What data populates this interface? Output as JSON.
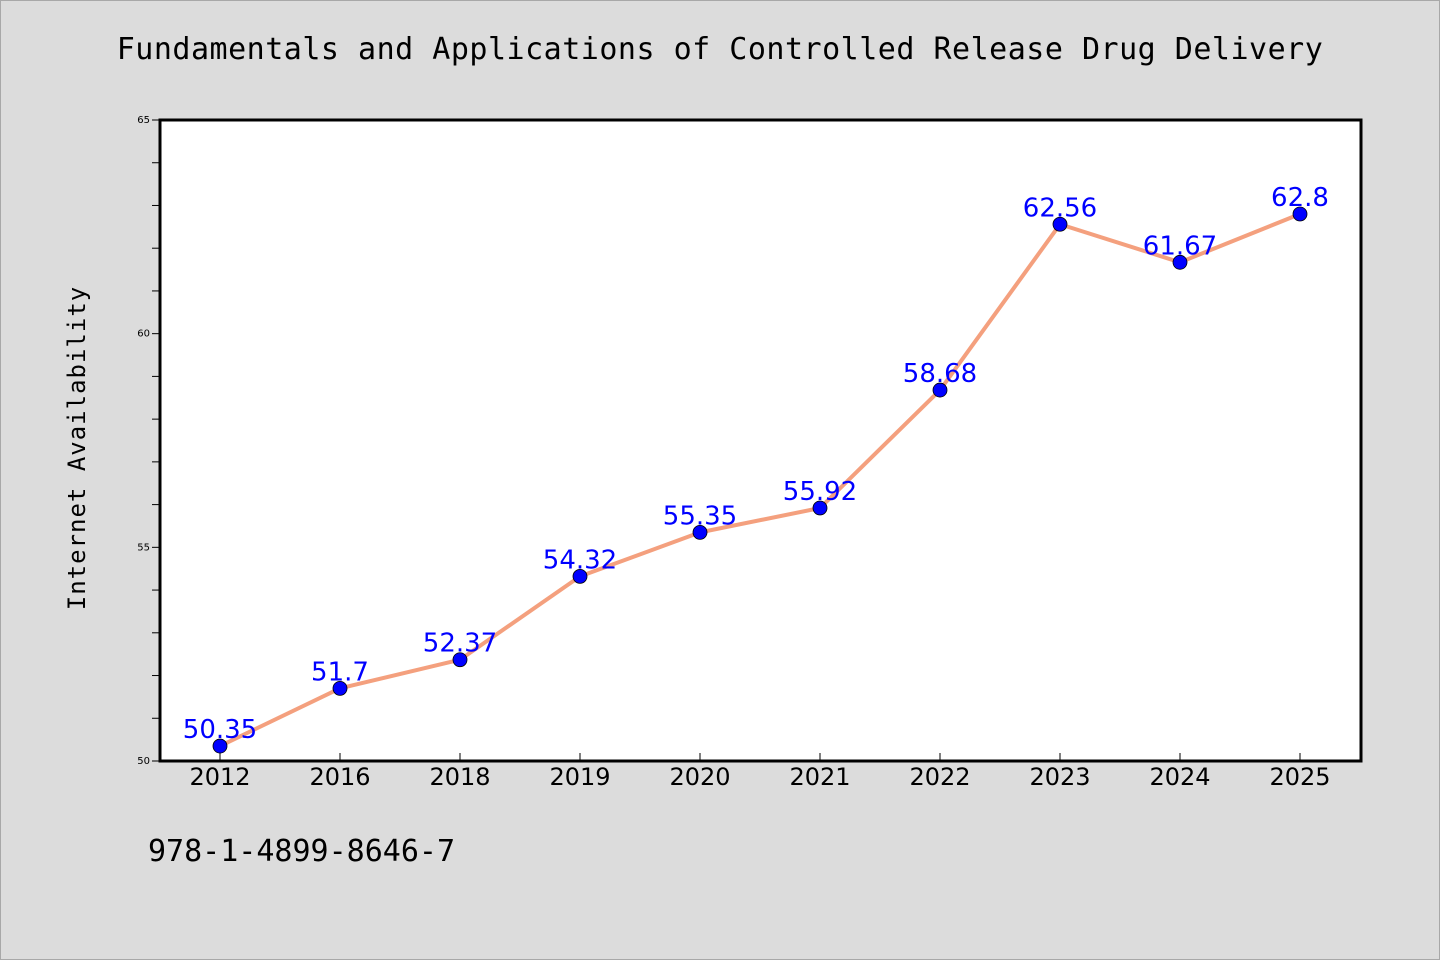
{
  "chart_data": {
    "type": "line",
    "title": "Fundamentals and Applications of Controlled Release Drug Delivery",
    "ylabel": "Internet Availability",
    "xlabel": "",
    "categories": [
      "2012",
      "2016",
      "2018",
      "2019",
      "2020",
      "2021",
      "2022",
      "2023",
      "2024",
      "2025"
    ],
    "values": [
      50.35,
      51.7,
      52.37,
      54.32,
      55.35,
      55.92,
      58.68,
      62.56,
      61.67,
      62.8
    ],
    "data_labels": [
      "50.35",
      "51.7",
      "52.37",
      "54.32",
      "55.35",
      "55.92",
      "58.68",
      "62.56",
      "61.67",
      "62.8"
    ],
    "ylim": [
      50,
      65
    ],
    "yticks": [
      50,
      55,
      60,
      65
    ],
    "ytick_labels": [
      "50",
      "55",
      "60",
      "65"
    ],
    "grid": false,
    "legend": "none",
    "line_color": "#f4a07e",
    "marker_color": "#0000ff",
    "label_color": "#0000ff"
  },
  "footer": {
    "isbn": "978-1-4899-8646-7"
  },
  "colors": {
    "background": "#dcdcdc",
    "plot_background": "#ffffff"
  }
}
